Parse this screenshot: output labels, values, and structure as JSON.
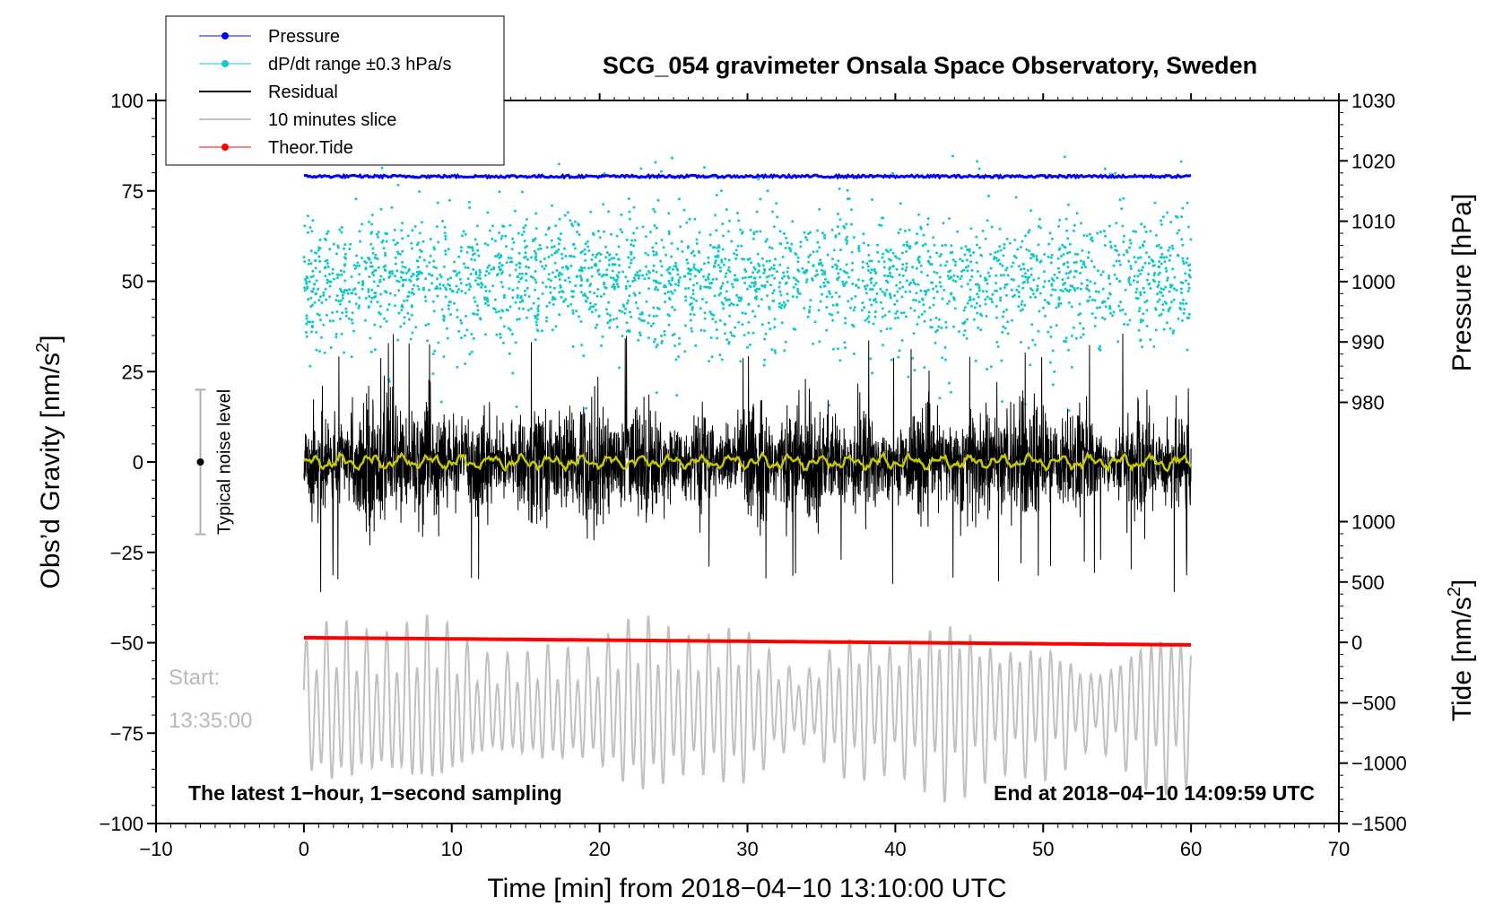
{
  "chart_data": {
    "type": "line",
    "title": "SCG_054 gravimeter Onsala Space Observatory, Sweden",
    "xlabel": "Time [min] from 2018−04−10 13:10:00 UTC",
    "ylabel": "Obs’d Gravity [nm/s²]",
    "ylabel_main": "Obs’d Gravity [nm/s",
    "ylabel_sup": "2",
    "ylabel_close": "]",
    "ylabel_right_pressure": "Pressure [hPa]",
    "ylabel_right_tide_main": "Tide [nm/s",
    "ylabel_right_tide_sup": "2",
    "ylabel_right_tide_close": "]",
    "xlim": [
      -10,
      70
    ],
    "ylim": [
      -100,
      100
    ],
    "x_ticks": [
      -10,
      0,
      10,
      20,
      30,
      40,
      50,
      60,
      70
    ],
    "x_tick_labels": [
      "−10",
      "0",
      "10",
      "20",
      "30",
      "40",
      "50",
      "60",
      "70"
    ],
    "y_ticks": [
      100,
      75,
      50,
      25,
      0,
      -25,
      -50,
      -75,
      -100
    ],
    "y_tick_labels": [
      "100",
      "75",
      "50",
      "25",
      "0",
      "−25",
      "−50",
      "−75",
      "−100"
    ],
    "pressure_ticks": [
      1030,
      1020,
      1010,
      1000,
      990,
      980
    ],
    "pressure_tick_labels": [
      "1030",
      "1020",
      "1010",
      "1000",
      "990",
      "980"
    ],
    "pressure_left_equiv": {
      "1030": 100,
      "980": 16.5
    },
    "tide_ticks": [
      1000,
      500,
      0,
      -500,
      -1000,
      -1500
    ],
    "tide_tick_labels": [
      "1000",
      "500",
      "0",
      "−500",
      "−1000",
      "−1500"
    ],
    "tide_left_equiv": {
      "1000": -16.5,
      "-1500": -100
    },
    "series": [
      {
        "name": "Pressure",
        "color": "#0000ee",
        "kind": "line",
        "x_range": [
          0,
          60
        ],
        "level_left_units": 79,
        "pressure_hPa": 1017.5
      },
      {
        "name": "dP/dt range ±0.3 hPa/s",
        "color": "#10c8c8",
        "kind": "scatter",
        "x_range": [
          0,
          60
        ],
        "center_left_units": 50,
        "spread_left_units": 30
      },
      {
        "name": "Residual",
        "color": "#000000",
        "kind": "line",
        "x_range": [
          0,
          60
        ],
        "center": 0,
        "peak_amplitude": 36
      },
      {
        "name": "10 minutes slice",
        "color": "#c0c0c0",
        "kind": "line",
        "x_range": [
          0,
          60
        ],
        "center_left_units": -68,
        "peak_amplitude": 24
      },
      {
        "name": "Theor.Tide",
        "color": "#ff0000",
        "kind": "line",
        "x": [
          0,
          60
        ],
        "y_left_units": [
          -48.6,
          -50.6
        ]
      }
    ],
    "smoothed_residual": {
      "color": "#c8c800",
      "center": 0,
      "amplitude": 2
    },
    "typical_noise_level": {
      "label": "Typical noise level",
      "x": -7,
      "center": 0,
      "range": [
        -20,
        20
      ]
    },
    "legend": {
      "placement": "top-left",
      "entries": [
        {
          "label": "Pressure",
          "color": "#0000ee",
          "marker": true
        },
        {
          "label": "dP/dt range ±0.3 hPa/s",
          "color": "#10c8c8",
          "marker": true
        },
        {
          "label": "Residual",
          "color": "#000000",
          "marker": false
        },
        {
          "label": "10 minutes slice",
          "color": "#c0c0c0",
          "marker": false
        },
        {
          "label": "Theor.Tide",
          "color": "#ff0000",
          "marker": true
        }
      ]
    },
    "annotations": {
      "bottom_left": "The latest 1−hour, 1−second sampling",
      "bottom_right": "End at 2018−04−10 14:09:59 UTC",
      "start_label": "Start:",
      "start_time": "13:35:00"
    }
  }
}
